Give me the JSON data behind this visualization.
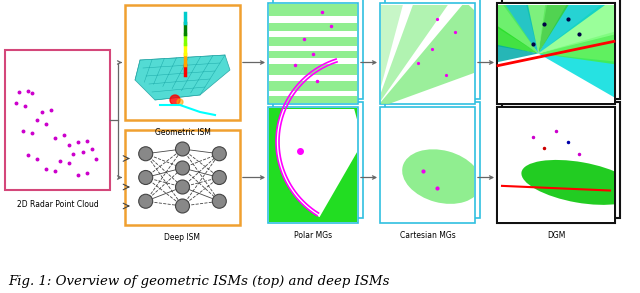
{
  "fig_width": 6.4,
  "fig_height": 2.93,
  "dpi": 100,
  "background_color": "#ffffff",
  "caption_text": "Fig. 1: Overview of geometric ISMs (top) and deep ISMs",
  "caption_fontsize": 9.5,
  "label_fontsize": 5.5,
  "labels": {
    "radar_cloud": "2D Radar Point Cloud",
    "geometric_ism": "Geometric ISM",
    "deep_ism": "Deep ISM",
    "polar_mgs": "Polar MGs",
    "cartesian_mgs": "Cartesian MGs",
    "dgm": "DGM"
  },
  "colors": {
    "radar_border": "#d4477a",
    "orange_border": "#f0a030",
    "cyan_border": "#30c0e0",
    "black_border": "#111111",
    "arrow": "#666666",
    "magenta_dot": "#cc00cc",
    "node_fill": "#888888",
    "node_edge": "#444444",
    "green_light": "#90ee90",
    "green_bright": "#22dd22",
    "white": "#ffffff"
  }
}
